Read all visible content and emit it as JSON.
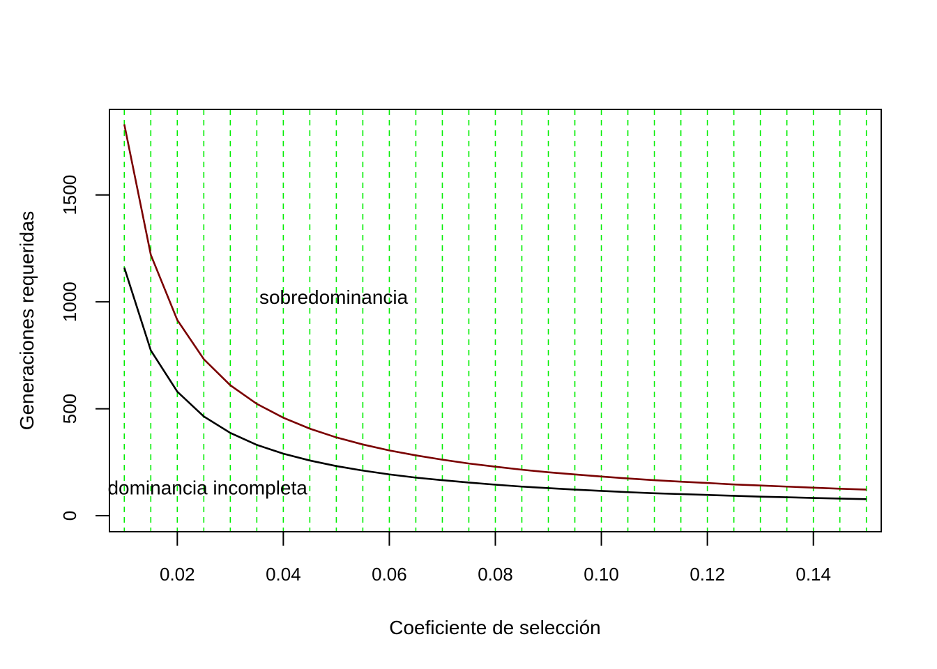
{
  "chart_data": {
    "type": "line",
    "title": "",
    "xlabel": "Coeficiente de selección",
    "ylabel": "Generaciones requeridas",
    "xlim": [
      0.0072,
      0.1528
    ],
    "ylim": [
      -75,
      1900
    ],
    "x_ticks": [
      0.02,
      0.04,
      0.06,
      0.08,
      0.1,
      0.12,
      0.14
    ],
    "x_tick_labels": [
      "0.02",
      "0.04",
      "0.06",
      "0.08",
      "0.10",
      "0.12",
      "0.14"
    ],
    "y_ticks": [
      0,
      500,
      1000,
      1500
    ],
    "y_tick_labels": [
      "0",
      "500",
      "1000",
      "1500"
    ],
    "grid": {
      "orientation": "vertical",
      "style": "dashed",
      "color": "#00ee00",
      "x_positions": [
        0.01,
        0.015,
        0.02,
        0.025,
        0.03,
        0.035,
        0.04,
        0.045,
        0.05,
        0.055,
        0.06,
        0.065,
        0.07,
        0.075,
        0.08,
        0.085,
        0.09,
        0.095,
        0.1,
        0.105,
        0.11,
        0.115,
        0.12,
        0.125,
        0.13,
        0.135,
        0.14,
        0.145,
        0.15
      ]
    },
    "x": [
      0.01,
      0.015,
      0.02,
      0.025,
      0.03,
      0.035,
      0.04,
      0.045,
      0.05,
      0.055,
      0.06,
      0.065,
      0.07,
      0.075,
      0.08,
      0.085,
      0.09,
      0.095,
      0.1,
      0.105,
      0.11,
      0.115,
      0.12,
      0.125,
      0.13,
      0.135,
      0.14,
      0.145,
      0.15
    ],
    "series": [
      {
        "color": "#7a0000",
        "values": [
          1830,
          1220,
          915,
          732,
          610,
          523,
          458,
          407,
          366,
          333,
          305,
          282,
          262,
          244,
          229,
          215,
          203,
          193,
          183,
          174,
          166,
          159,
          153,
          146,
          141,
          136,
          131,
          126,
          122
        ]
      },
      {
        "color": "#000000",
        "values": [
          1160,
          773,
          580,
          464,
          387,
          331,
          290,
          258,
          232,
          211,
          193,
          178,
          166,
          155,
          145,
          136,
          129,
          122,
          116,
          110,
          105,
          101,
          97,
          93,
          89,
          86,
          83,
          80,
          77
        ]
      }
    ],
    "annotations": [
      {
        "text": "sobredominancia",
        "x": 0.0495,
        "y": 990
      },
      {
        "text": "dominancia incompleta",
        "x": 0.0257,
        "y": 100
      }
    ]
  }
}
